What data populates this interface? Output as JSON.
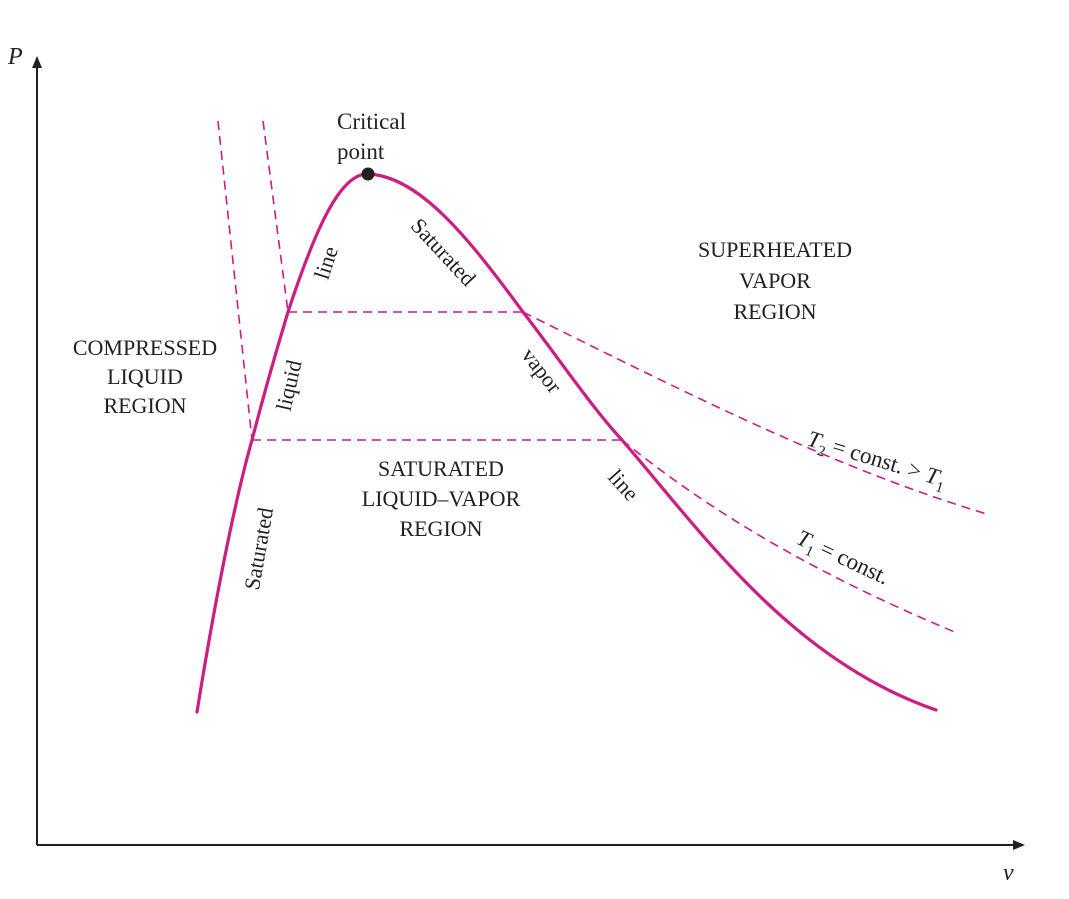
{
  "axes": {
    "y_label": "P",
    "x_label": "v"
  },
  "critical_point": {
    "line1": "Critical",
    "line2": "point"
  },
  "regions": {
    "compressed": [
      "COMPRESSED",
      "LIQUID",
      "REGION"
    ],
    "superheated": [
      "SUPERHEATED",
      "VAPOR",
      "REGION"
    ],
    "saturated_mix": [
      "SATURATED",
      "LIQUID–VAPOR",
      "REGION"
    ]
  },
  "liquid_line_labels": {
    "word1": "Saturated",
    "word2": "liquid",
    "word3": "line"
  },
  "vapor_line_labels": {
    "word1": "Saturated",
    "word2": "vapor",
    "word3": "line"
  },
  "isotherms": {
    "t2": {
      "sym": "T",
      "sub": "2",
      "rel": " = const. > ",
      "sym2": "T",
      "sub2": "1"
    },
    "t1": {
      "sym": "T",
      "sub": "1",
      "rel": " = const."
    }
  },
  "colors": {
    "curve": "#cc1d82",
    "axis": "#231f20",
    "text": "#231f20"
  }
}
